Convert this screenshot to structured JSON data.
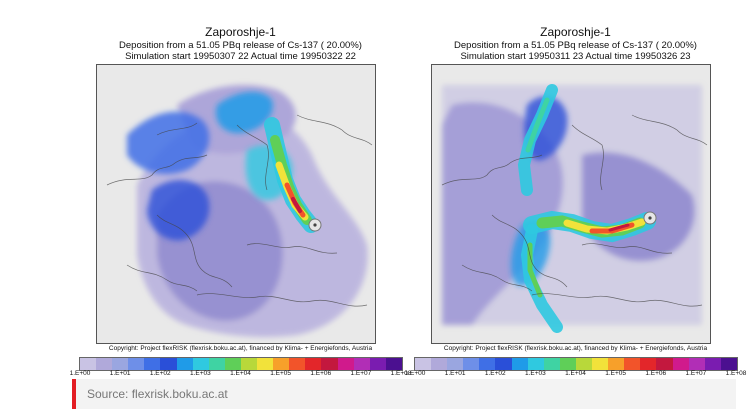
{
  "panels": [
    {
      "title": "Zaporoshje-1",
      "line2": "Deposition from a   51.05 PBq release of Cs-137 ( 20.00%)",
      "line3": "Simulation start 19950307 22    Actual time  19950322 22",
      "copyright": "Copyright: Project flexRISK (flexrisk.boku.ac.at), financed by Klima- + Energiefonds, Austria"
    },
    {
      "title": "Zaporoshje-1",
      "line2": "Deposition from a   51.05 PBq release of Cs-137 ( 20.00%)",
      "line3": "Simulation start 19950311 23    Actual time  19950326 23",
      "copyright": "Copyright: Project flexRISK (flexrisk.boku.ac.at), financed by Klima- + Energiefonds, Austria"
    }
  ],
  "scale": {
    "tick_labels": [
      "1.E+00",
      "1.E+01",
      "1.E+02",
      "1.E+03",
      "1.E+04",
      "1.E+05",
      "1.E+06",
      "1.E+07",
      "1.E+08"
    ],
    "colors": [
      "#c9c3e4",
      "#b0a9da",
      "#9aa6e0",
      "#6e8fe8",
      "#3f6fe6",
      "#2a4fd8",
      "#1f9be8",
      "#2fc9e0",
      "#3fd3a3",
      "#5fcf58",
      "#b8d83a",
      "#f2e23a",
      "#f7a02a",
      "#f2542a",
      "#e3262a",
      "#c3183e",
      "#d01a8c",
      "#b12eb6",
      "#7a1cb0",
      "#4b1090"
    ]
  },
  "source": {
    "text": "Source: flexrisk.boku.ac.at"
  },
  "colors": {
    "accent": "#e31d23"
  }
}
